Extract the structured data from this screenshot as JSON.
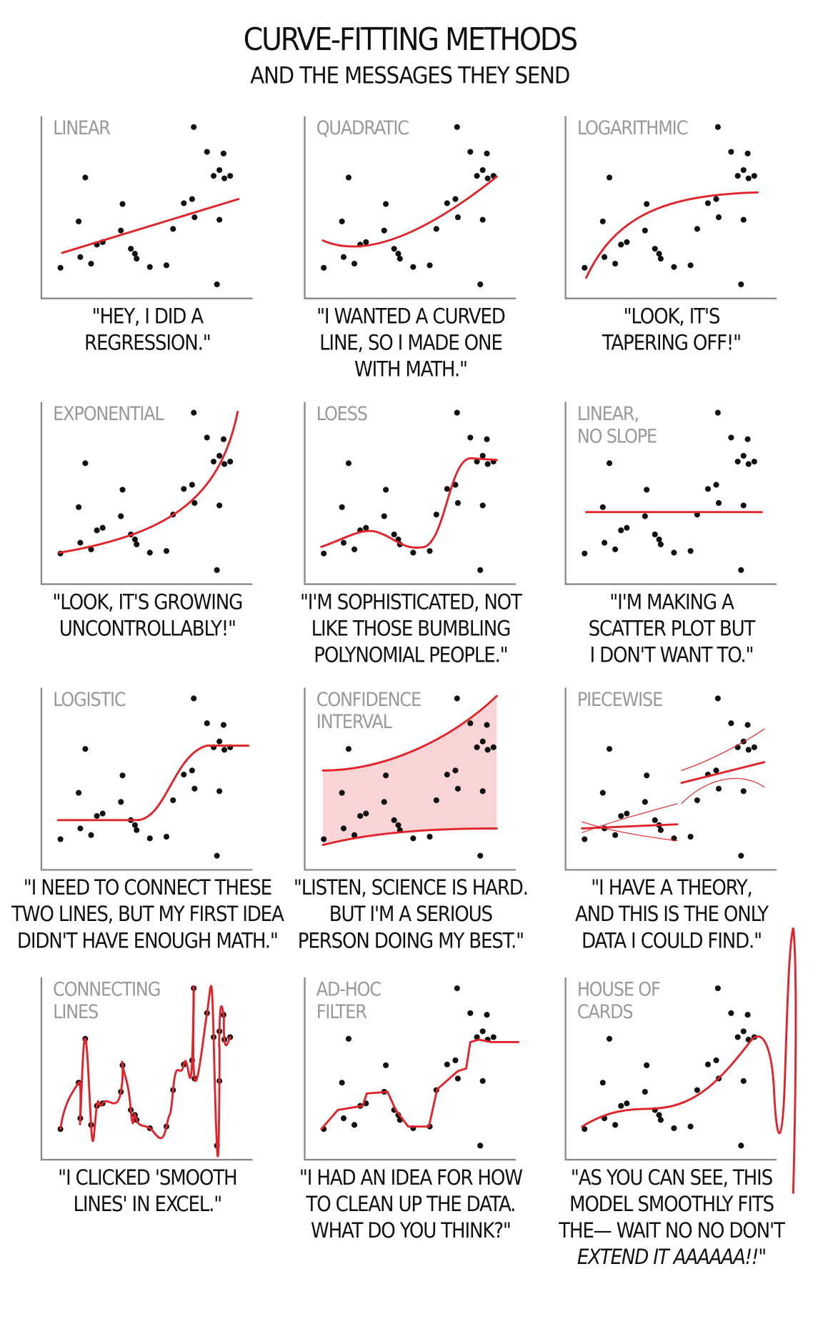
{
  "title": "CURVE-FITTING METHODS",
  "subtitle": "AND THE MESSAGES THEY SEND",
  "panels": [
    {
      "label": [
        "LINEAR"
      ],
      "caption": [
        "\"HEY, I DID A",
        "REGRESSION.\""
      ]
    },
    {
      "label": [
        "QUADRATIC"
      ],
      "caption": [
        "\"I WANTED A CURVED",
        "LINE, SO I MADE ONE",
        "WITH MATH.\""
      ]
    },
    {
      "label": [
        "LOGARITHMIC"
      ],
      "caption": [
        "\"LOOK, IT'S",
        "TAPERING OFF!\""
      ]
    },
    {
      "label": [
        "EXPONENTIAL"
      ],
      "caption": [
        "\"LOOK, IT'S GROWING",
        "UNCONTROLLABLY!\""
      ]
    },
    {
      "label": [
        "LOESS"
      ],
      "caption": [
        "\"I'M SOPHISTICATED, NOT",
        "LIKE THOSE BUMBLING",
        "POLYNOMIAL PEOPLE.\""
      ]
    },
    {
      "label": [
        "LINEAR,",
        "NO SLOPE"
      ],
      "caption": [
        "\"I'M MAKING A",
        "SCATTER PLOT BUT",
        "I DON'T WANT TO.\""
      ]
    },
    {
      "label": [
        "LOGISTIC"
      ],
      "caption": [
        "\"I NEED TO CONNECT THESE",
        "TWO LINES, BUT MY FIRST IDEA",
        "DIDN'T HAVE ENOUGH MATH.\""
      ]
    },
    {
      "label": [
        "CONFIDENCE",
        "INTERVAL"
      ],
      "caption": [
        "\"LISTEN, SCIENCE IS HARD.",
        "BUT I'M A SERIOUS",
        "PERSON DOING MY BEST.\""
      ]
    },
    {
      "label": [
        "PIECEWISE"
      ],
      "caption": [
        "\"I HAVE A THEORY,",
        "AND THIS IS THE ONLY",
        "DATA I COULD FIND.\""
      ]
    },
    {
      "label": [
        "CONNECTING",
        "LINES"
      ],
      "caption": [
        "\"I CLICKED 'SMOOTH",
        "LINES' IN EXCEL.\""
      ]
    },
    {
      "label": [
        "AD-HOC",
        "FILTER"
      ],
      "caption": [
        "\"I HAD AN IDEA FOR HOW",
        "TO CLEAN UP THE DATA.",
        "WHAT DO YOU THINK?\""
      ]
    },
    {
      "label": [
        "HOUSE OF",
        "CARDS"
      ],
      "caption": [
        "\"AS YOU CAN SEE, THIS",
        "MODEL SMOOTHLY FITS",
        "THE— WAIT NO NO DON'T",
        "EXTEND IT AAAAAA!!\""
      ]
    }
  ]
}
